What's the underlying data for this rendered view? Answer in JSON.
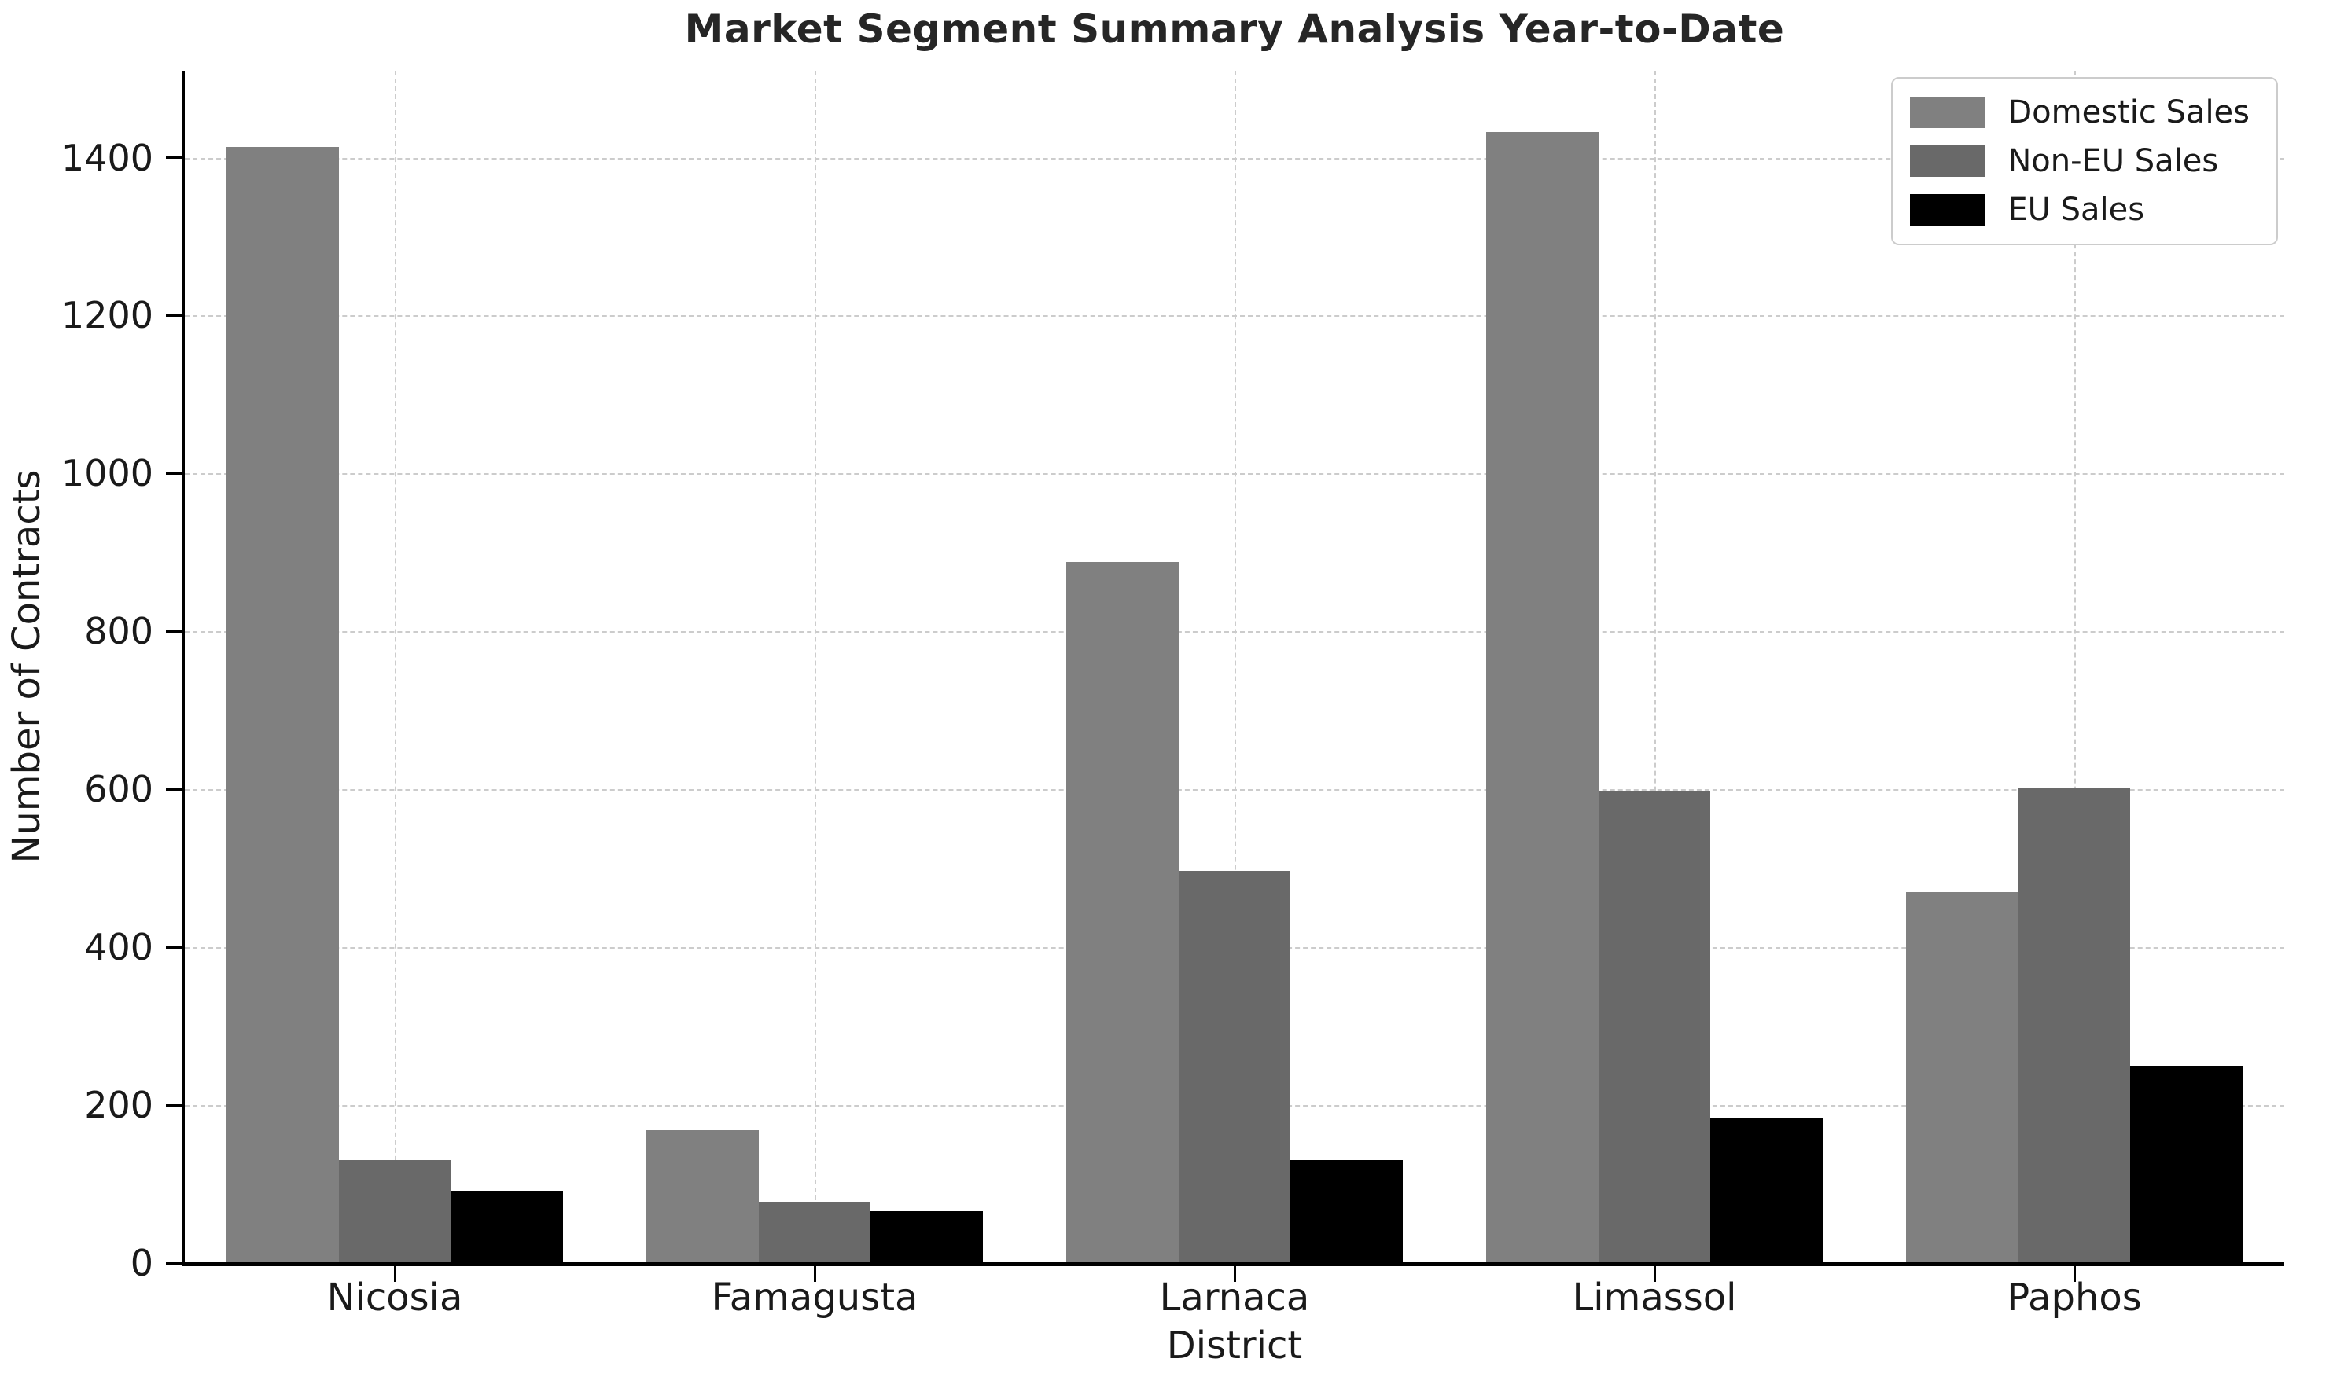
{
  "chart_data": {
    "type": "bar",
    "title": "Market Segment Summary Analysis Year-to-Date",
    "xlabel": "District",
    "ylabel": "Number of Contracts",
    "categories": [
      "Nicosia",
      "Famagusta",
      "Larnaca",
      "Limassol",
      "Paphos"
    ],
    "series": [
      {
        "name": "Domestic Sales",
        "color": "#808080",
        "values": [
          1413,
          168,
          888,
          1432,
          470
        ]
      },
      {
        "name": "Non-EU Sales",
        "color": "#696969",
        "values": [
          130,
          78,
          497,
          598,
          602
        ]
      },
      {
        "name": "EU Sales",
        "color": "#000000",
        "values": [
          92,
          66,
          130,
          183,
          250
        ]
      }
    ],
    "ylim": [
      0,
      1510
    ],
    "yticks": [
      0,
      200,
      400,
      600,
      800,
      1000,
      1200,
      1400
    ],
    "grid": true,
    "grid_style": "dashed",
    "legend_position": "upper right",
    "background_color": "#ffffff",
    "text_color": "#1a1a1a",
    "title_color": "#262626",
    "gridline_color": "#cccccc"
  }
}
